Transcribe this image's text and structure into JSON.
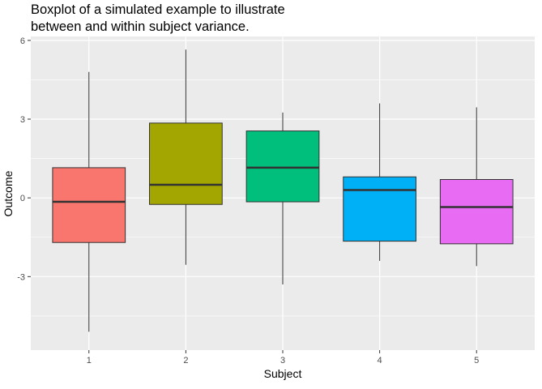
{
  "chart_data": {
    "type": "boxplot",
    "title_lines": [
      "Boxplot of a simulated example to illustrate",
      "between and within subject variance."
    ],
    "xlabel": "Subject",
    "ylabel": "Outcome",
    "categories": [
      "1",
      "2",
      "3",
      "4",
      "5"
    ],
    "yticks": [
      -3,
      0,
      3,
      6
    ],
    "ylim": [
      -5.8,
      6.15
    ],
    "grid": true,
    "legend": "none",
    "colors": {
      "panel": "#EBEBEB",
      "grid": "#FFFFFF",
      "box_outline": "#333333",
      "median": "#333333"
    },
    "boxes": [
      {
        "category": "1",
        "min": -5.1,
        "q1": -1.7,
        "median": -0.15,
        "q3": 1.15,
        "max": 4.8,
        "color": "#F8766D"
      },
      {
        "category": "2",
        "min": -2.55,
        "q1": -0.25,
        "median": 0.5,
        "q3": 2.85,
        "max": 5.65,
        "color": "#A3A500"
      },
      {
        "category": "3",
        "min": -3.3,
        "q1": -0.15,
        "median": 1.15,
        "q3": 2.55,
        "max": 3.25,
        "color": "#00BF7D"
      },
      {
        "category": "4",
        "min": -2.4,
        "q1": -1.65,
        "median": 0.3,
        "q3": 0.8,
        "max": 3.6,
        "color": "#00B0F6"
      },
      {
        "category": "5",
        "min": -2.6,
        "q1": -1.75,
        "median": -0.35,
        "q3": 0.7,
        "max": 3.45,
        "color": "#E76BF3"
      }
    ]
  }
}
